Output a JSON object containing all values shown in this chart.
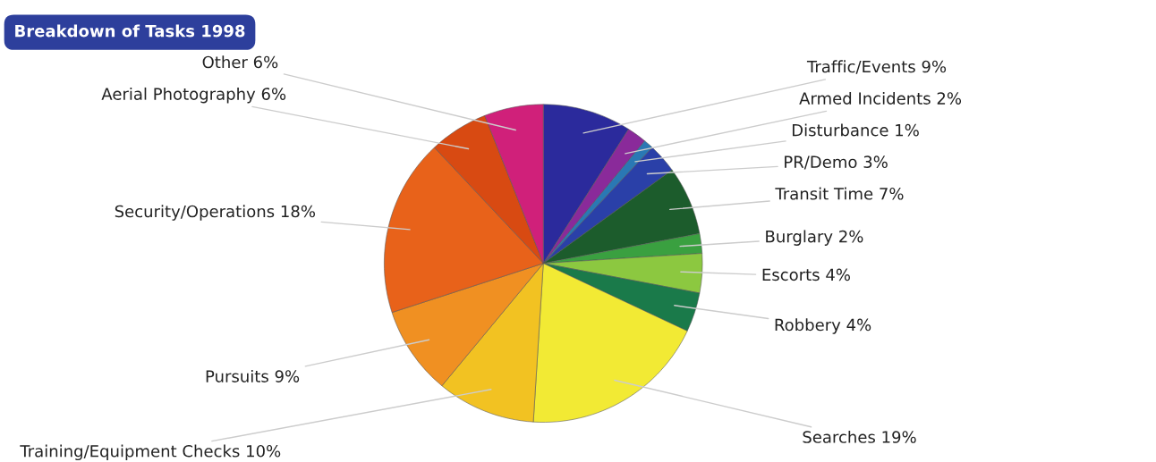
{
  "chart_data": {
    "type": "pie",
    "title": "Breakdown of Tasks 1998",
    "categories": [
      "Traffic/Events",
      "Armed Incidents",
      "Disturbance",
      "PR/Demo",
      "Transit Time",
      "Burglary",
      "Escorts",
      "Robbery",
      "Searches",
      "Training/Equipment Checks",
      "Pursuits",
      "Security/Operations",
      "Aerial Photography",
      "Other"
    ],
    "values": [
      9,
      2,
      1,
      3,
      7,
      2,
      4,
      4,
      19,
      10,
      9,
      18,
      6,
      6
    ],
    "value_labels": [
      "9%",
      "2%",
      "1%",
      "3%",
      "7%",
      "2%",
      "4%",
      "4%",
      "19%",
      "10%",
      "9%",
      "18%",
      "6%",
      "6%"
    ],
    "colors": [
      "#2b2a9c",
      "#8a2a9a",
      "#2a78b4",
      "#2a40a8",
      "#1c5c2c",
      "#3aa040",
      "#8cc840",
      "#1a7a4a",
      "#f2ea34",
      "#f2c222",
      "#f09022",
      "#e8621a",
      "#d84a12",
      "#d0207a"
    ]
  }
}
